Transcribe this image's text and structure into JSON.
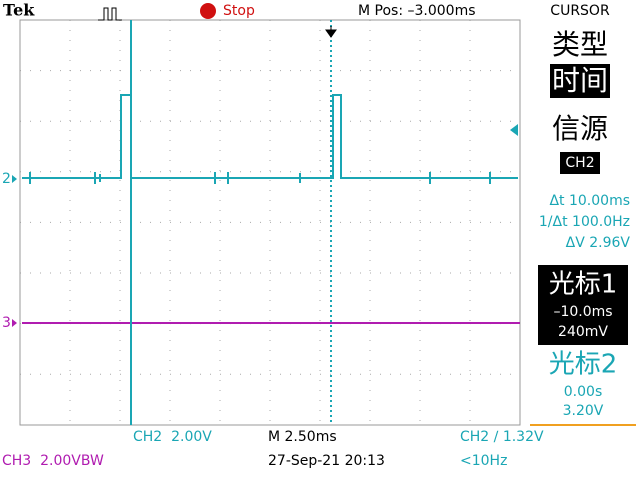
{
  "header": {
    "brand": "Tek",
    "run_state": "Stop",
    "position": "M Pos: –3.000ms"
  },
  "menu": {
    "title": "CURSOR",
    "type_label": "类型",
    "type_value": "时间",
    "source_label": "信源",
    "source_value": "CH2",
    "delta_t": "Δt 10.00ms",
    "inverse_delta_t": "1/Δt 100.0Hz",
    "delta_v": "ΔV 2.96V",
    "cursor1": {
      "label": "光标1",
      "time": "–10.0ms",
      "voltage": "240mV"
    },
    "cursor2": {
      "label": "光标2",
      "time": "0.00s",
      "voltage": "3.20V"
    }
  },
  "markers": {
    "ch2": "2",
    "ch3": "3"
  },
  "status": {
    "ch2_scale": "CH2  2.00V",
    "timebase": "M 2.50ms",
    "trigger": "CH2 ∕ 1.32V",
    "ch3_scale": "CH3  2.00VBW",
    "datetime": "27-Sep-21 20:13",
    "frequency": "<10Hz"
  }
}
